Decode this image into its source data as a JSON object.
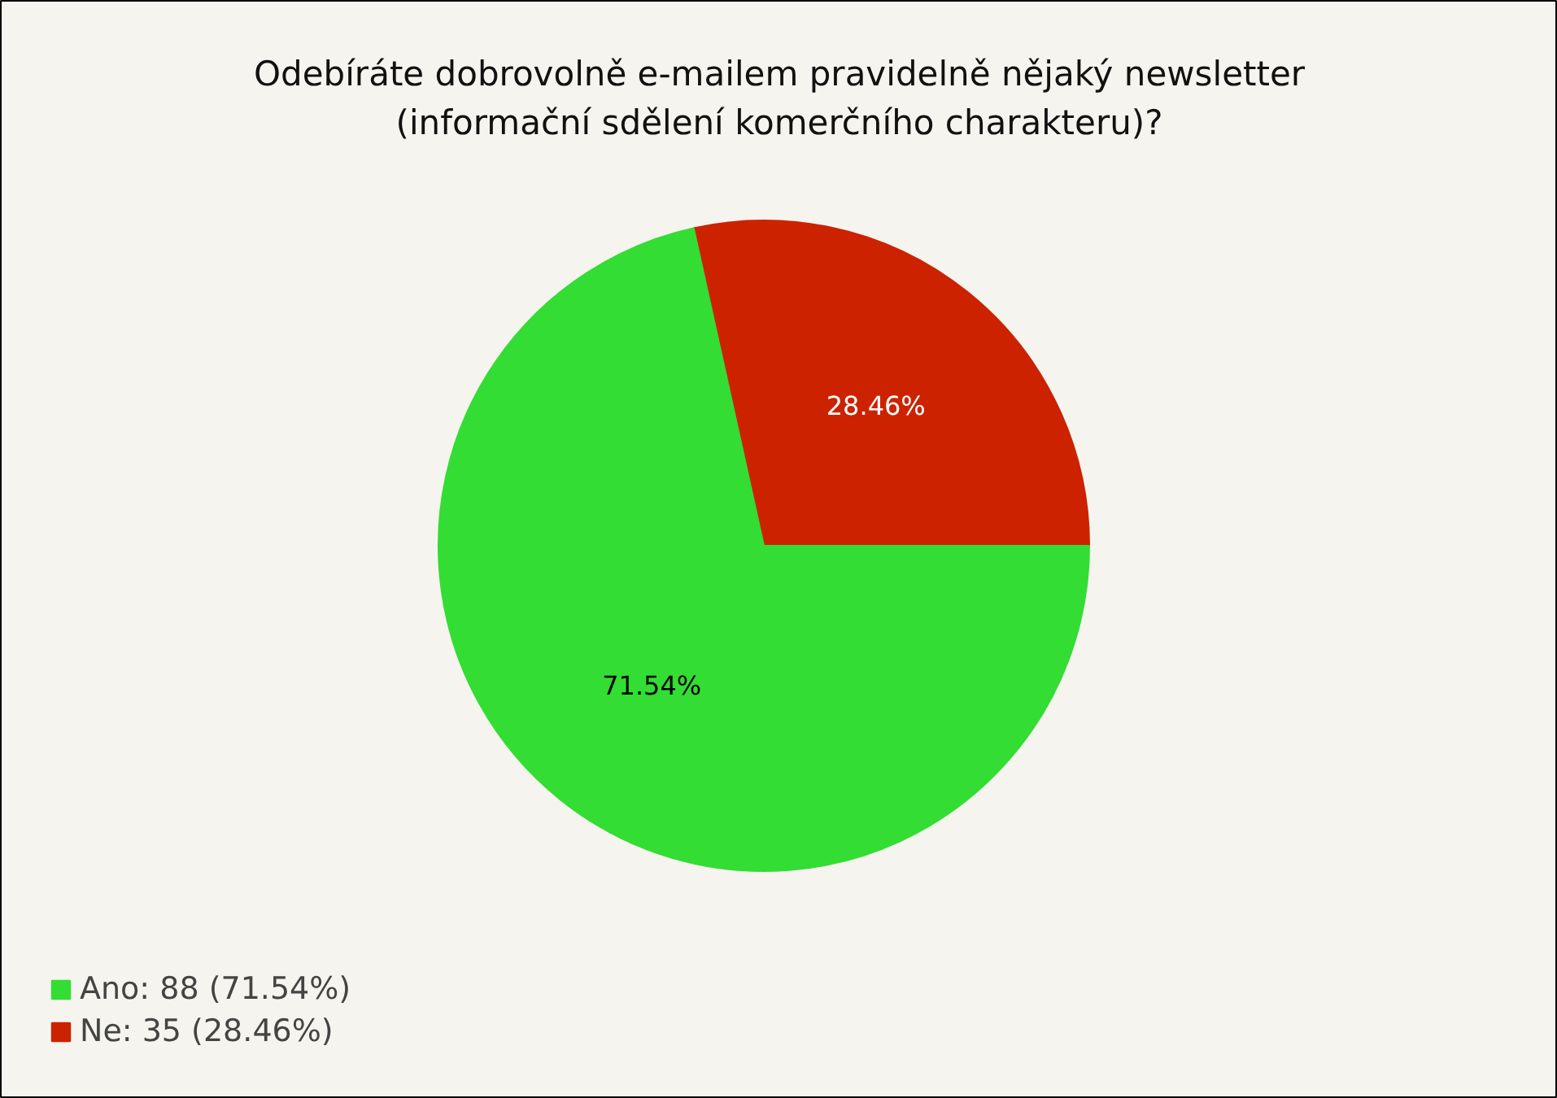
{
  "chart_data": {
    "type": "pie",
    "title": "Odebíráte dobrovolně e-mailem pravidelně nějaký newsletter\n(informační sdělení komerčního charakteru)?",
    "categories": [
      "Ano: 88 (71.54%)",
      "Ne: 35 (28.46%)"
    ],
    "values": [
      71.54,
      28.46
    ],
    "value_labels": [
      "71.54%",
      "28.46%"
    ],
    "colors": [
      "#33dd33",
      "#cc2200"
    ],
    "legend": "bottom left"
  }
}
